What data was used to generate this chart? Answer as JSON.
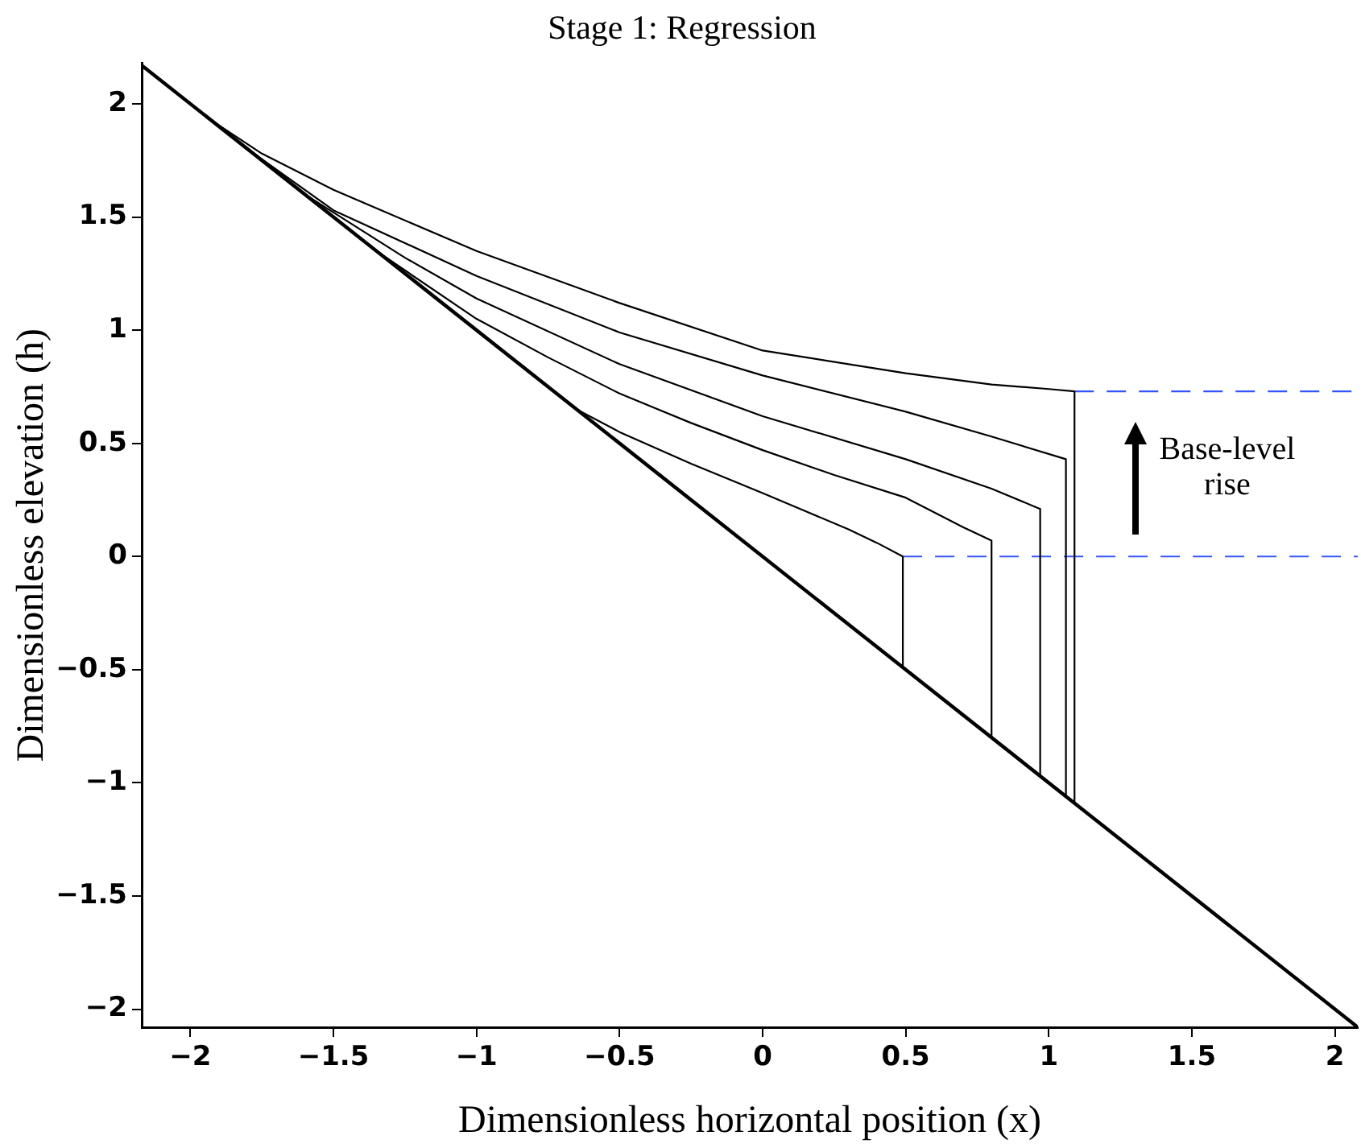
{
  "chart_data": {
    "type": "line",
    "title": "Stage 1: Regression",
    "xlabel": "Dimensionless horizontal position (x)",
    "ylabel": "Dimensionless elevation (h)",
    "xlim": [
      -2.17,
      2.08
    ],
    "ylim": [
      -2.08,
      2.18
    ],
    "xticks": [
      -2,
      -1.5,
      -1,
      -0.5,
      0,
      0.5,
      1,
      1.5,
      2
    ],
    "yticks": [
      -2,
      -1.5,
      -1,
      -0.5,
      0,
      0.5,
      1,
      1.5,
      2
    ],
    "grid": false,
    "legend": false,
    "marker": "none",
    "line_style": "solid",
    "annotations": [
      "Base-level rise"
    ],
    "series": [
      {
        "color": "#000000",
        "x": [
          -2.17,
          2.08
        ],
        "values": [
          2.17,
          -2.08
        ]
      },
      {
        "color": "#000000",
        "x": [
          -0.65,
          -0.5,
          -0.25,
          0,
          0.15,
          0.3,
          0.4,
          0.49,
          0.49
        ],
        "values": [
          0.65,
          0.55,
          0.41,
          0.28,
          0.2,
          0.12,
          0.06,
          0,
          -0.49
        ]
      },
      {
        "color": "#000000",
        "x": [
          -1.35,
          -1,
          -0.75,
          -0.5,
          -0.25,
          0,
          0.25,
          0.5,
          0.7,
          0.8,
          0.8
        ],
        "values": [
          1.35,
          1.05,
          0.88,
          0.72,
          0.59,
          0.47,
          0.36,
          0.26,
          0.13,
          0.07,
          -0.8
        ]
      },
      {
        "color": "#000000",
        "x": [
          -1.6,
          -1.5,
          -1.25,
          -1,
          -0.5,
          0,
          0.5,
          0.8,
          0.97,
          0.97
        ],
        "values": [
          1.6,
          1.52,
          1.32,
          1.14,
          0.85,
          0.62,
          0.43,
          0.3,
          0.21,
          -0.97
        ]
      },
      {
        "color": "#000000",
        "x": [
          -1.8,
          -1.5,
          -1,
          -0.5,
          0,
          0.5,
          0.8,
          1.06,
          1.06
        ],
        "values": [
          1.8,
          1.53,
          1.24,
          0.99,
          0.8,
          0.64,
          0.53,
          0.43,
          -1.06
        ]
      },
      {
        "color": "#000000",
        "x": [
          -1.93,
          -1.75,
          -1.5,
          -1,
          -0.5,
          0,
          0.5,
          0.8,
          1,
          1.09,
          1.09
        ],
        "values": [
          1.93,
          1.78,
          1.62,
          1.35,
          1.12,
          0.91,
          0.81,
          0.76,
          0.74,
          0.73,
          -1.09
        ]
      },
      {
        "color": "#3355ff",
        "line_style": "dashed",
        "x": [
          0.49,
          2.08
        ],
        "values": [
          0,
          0
        ]
      },
      {
        "color": "#3355ff",
        "line_style": "dashed",
        "x": [
          1.09,
          2.08
        ],
        "values": [
          0.73,
          0.73
        ]
      }
    ]
  }
}
